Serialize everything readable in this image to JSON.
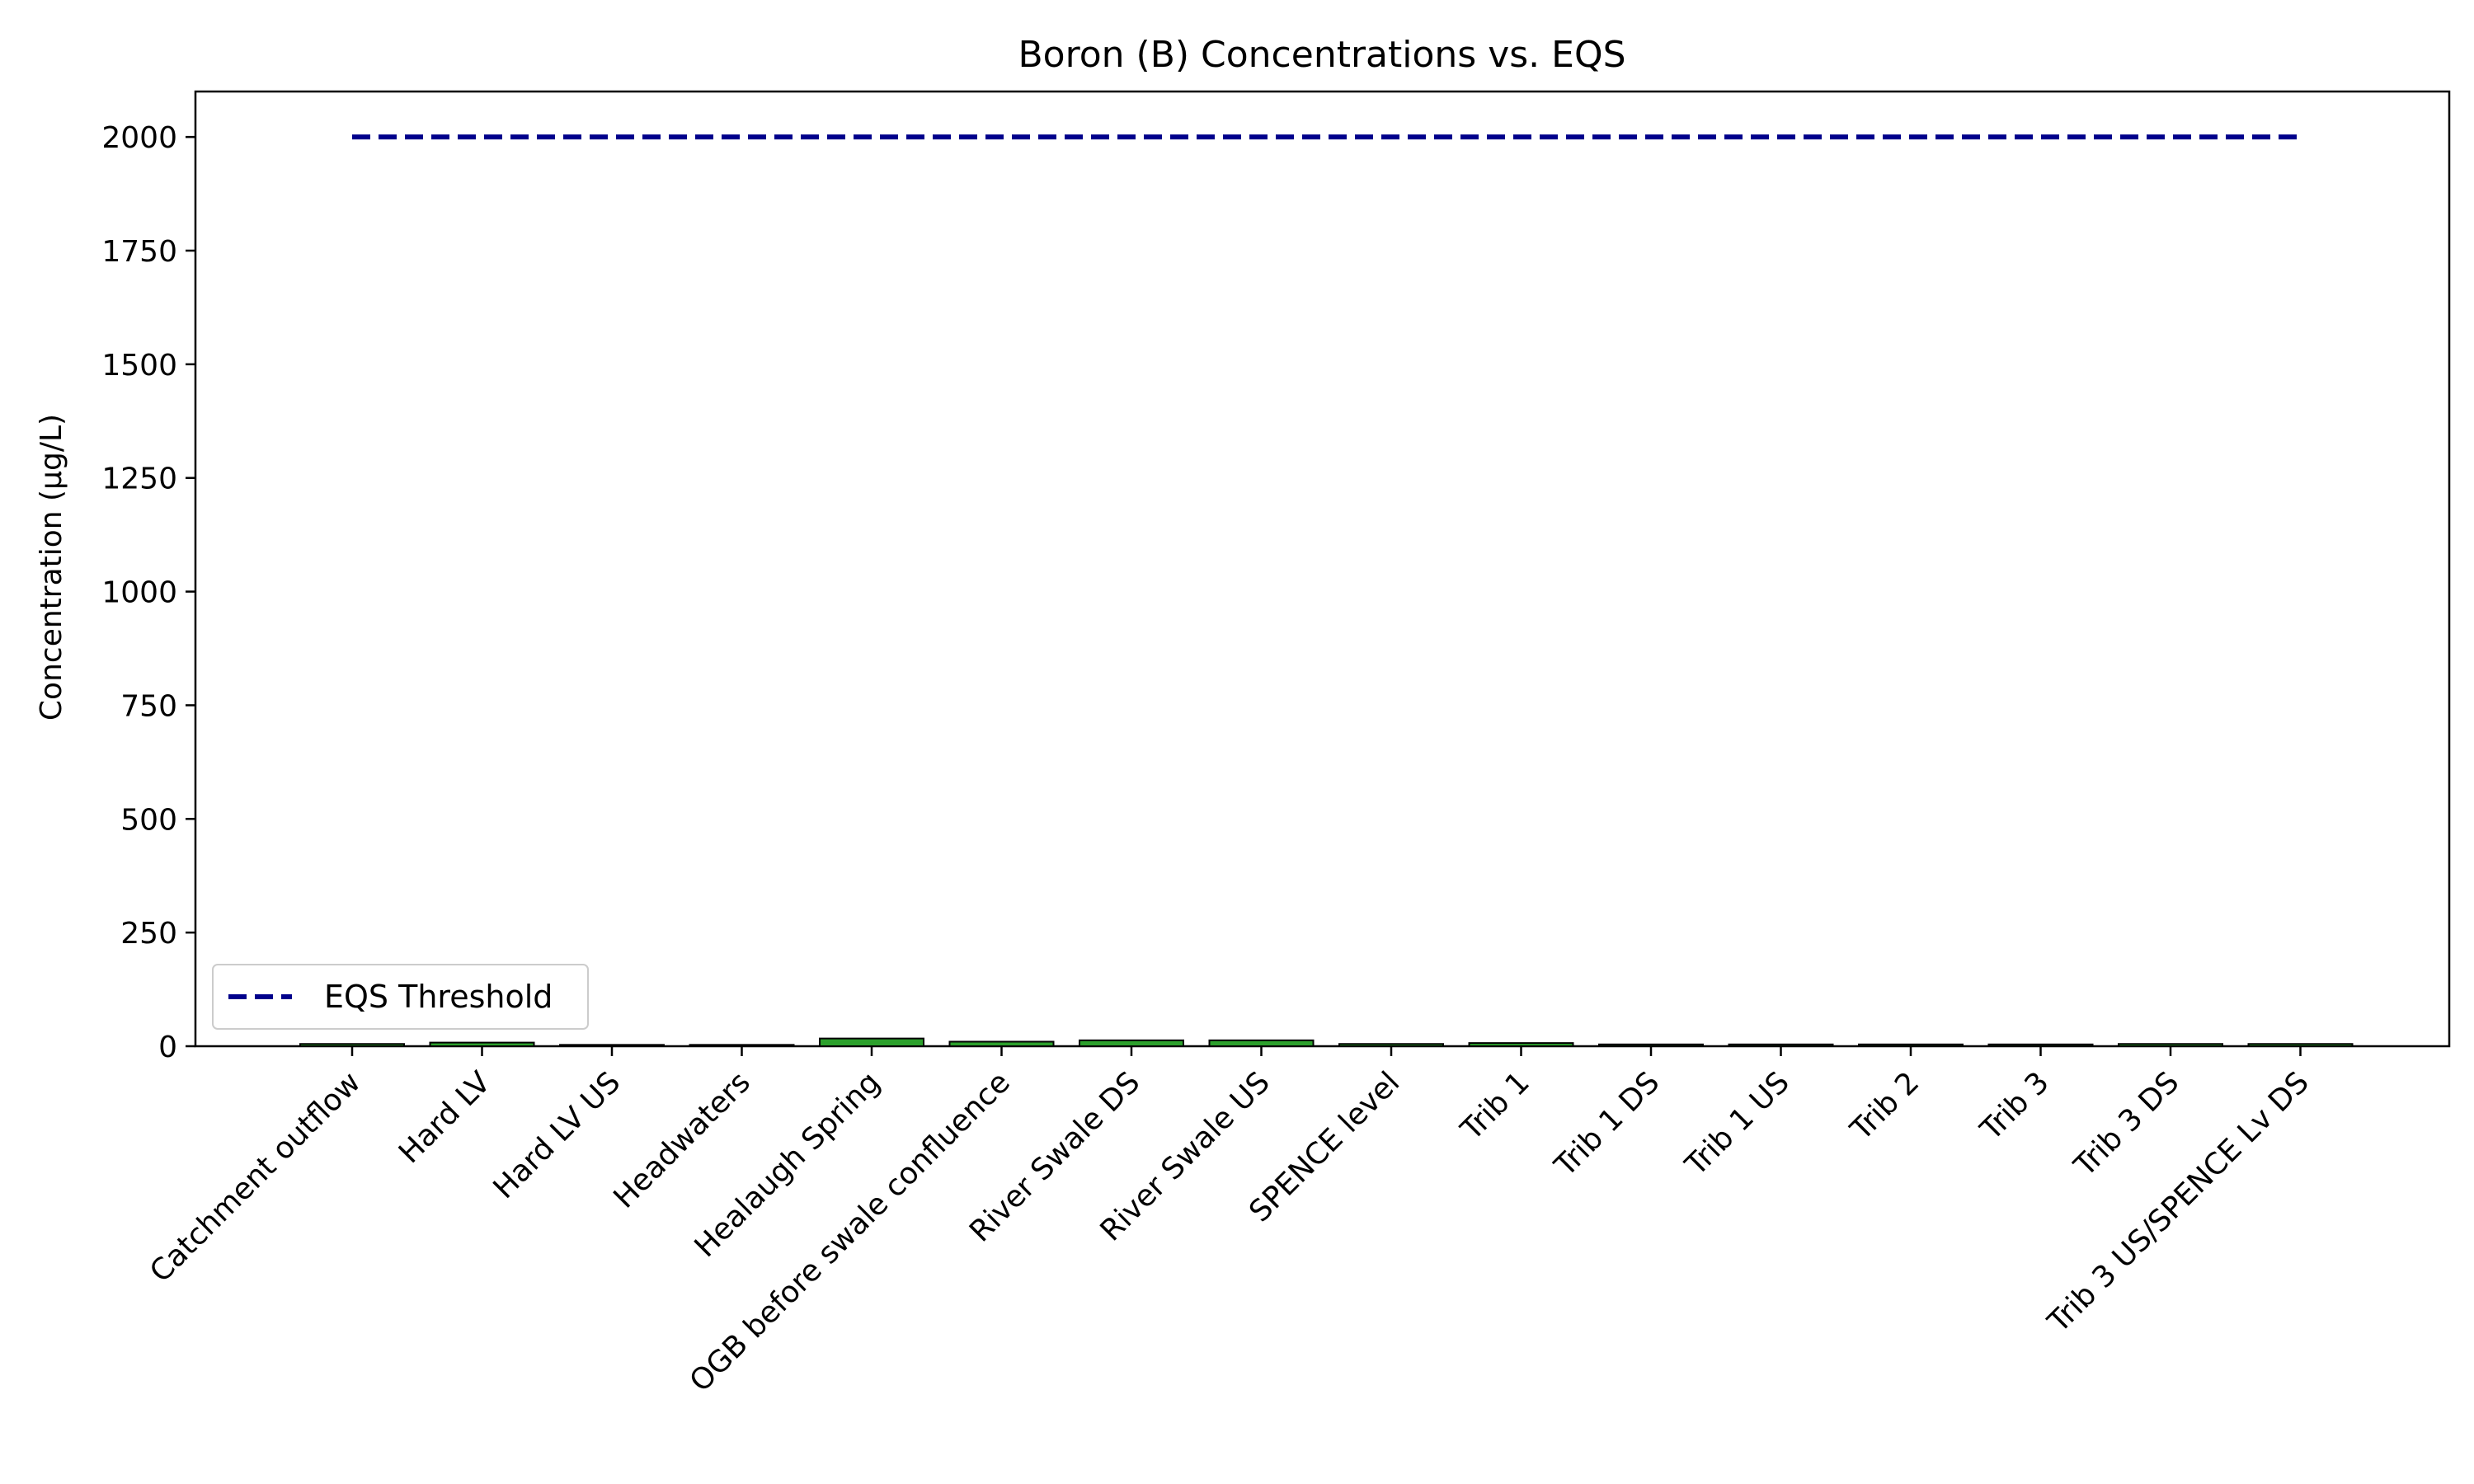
{
  "chart_data": {
    "type": "bar",
    "title": "Boron (B) Concentrations vs. EQS",
    "xlabel": "",
    "ylabel": "Concentration (µg/L)",
    "ylim": [
      0,
      2100
    ],
    "yticks": [
      0,
      250,
      500,
      750,
      1000,
      1250,
      1500,
      1750,
      2000
    ],
    "categories": [
      "Catchment outflow",
      "Hard LV",
      "Hard LV US",
      "Headwaters",
      "Healaugh Spring",
      "OGB before swale confluence",
      "River Swale DS",
      "River Swale US",
      "SPENCE level",
      "Trib 1",
      "Trib 1 DS",
      "Trib 1 US",
      "Trib 2",
      "Trib 3",
      "Trib 3 DS",
      "Trib 3 US/SPENCE Lv DS"
    ],
    "values": [
      5,
      8,
      3,
      3,
      17,
      10,
      13,
      13,
      5,
      7,
      4,
      4,
      4,
      4,
      5,
      5
    ],
    "bar_color": "#2ca02c",
    "bar_edge_color": "#000000",
    "threshold": {
      "name": "EQS Threshold",
      "value": 2000,
      "color": "#00008b",
      "style": "dashed"
    },
    "grid": false,
    "legend_position": "lower-left"
  }
}
